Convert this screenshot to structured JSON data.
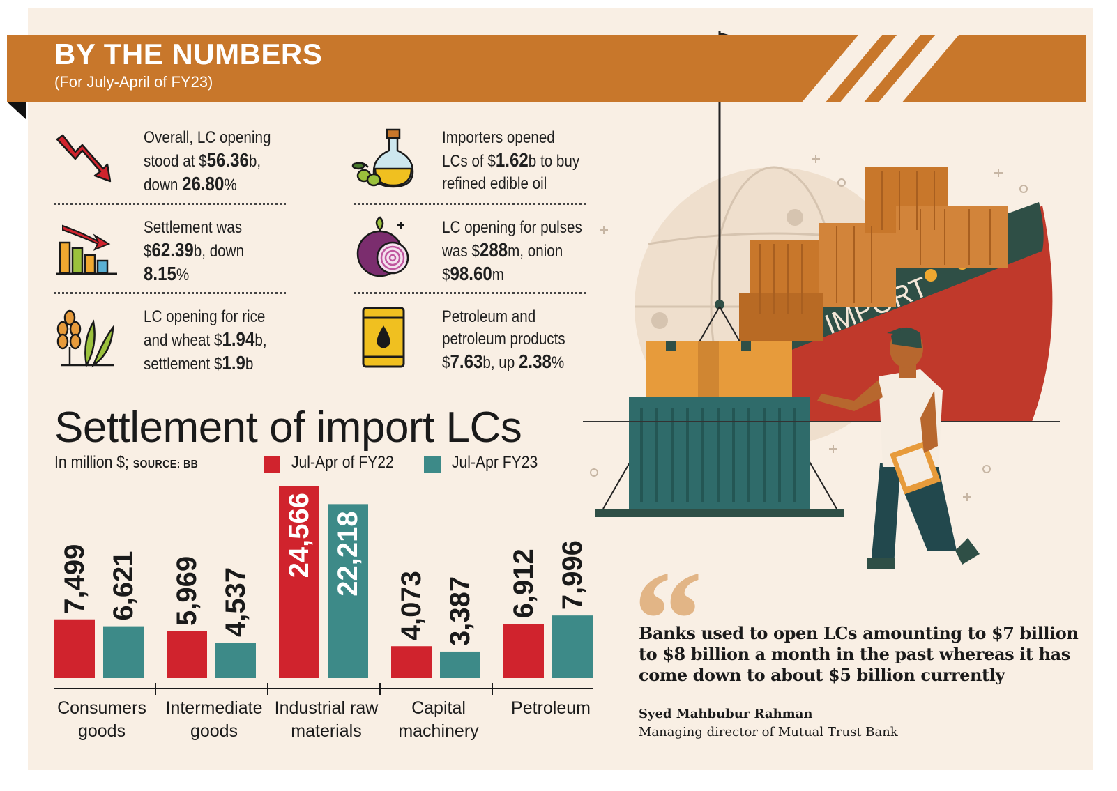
{
  "banner": {
    "title": "BY THE NUMBERS",
    "subtitle": "(For July-April of FY23)"
  },
  "stats": [
    {
      "icon": "trend-down-arrow-icon",
      "lines": [
        "Overall, LC opening",
        "stood at $<b>56.36</b>b,",
        "down <b>26.80</b>%"
      ]
    },
    {
      "icon": "declining-bar-chart-icon",
      "lines": [
        "Settlement was",
        "$<b>62.39</b>b, down",
        "<b>8.15</b>%"
      ]
    },
    {
      "icon": "wheat-rice-icon",
      "lines": [
        "LC opening for rice",
        "and wheat $<b>1.94</b>b,",
        "settlement $<b>1.9</b>b"
      ]
    },
    {
      "icon": "oil-bottle-olives-icon",
      "lines": [
        "Importers opened",
        "LCs of $<b>1.62</b>b to buy",
        "refined edible oil"
      ]
    },
    {
      "icon": "onion-icon",
      "lines": [
        "LC opening for pulses",
        "was $<b>288</b>m, onion",
        "$<b>98.60</b>m"
      ]
    },
    {
      "icon": "oil-barrel-icon",
      "lines": [
        "Petroleum and",
        "petroleum products",
        "$<b>7.63</b>b, up <b>2.38</b>%"
      ]
    }
  ],
  "colors": {
    "fy22": "#d0232d",
    "fy23": "#3d8a88",
    "banner": "#c8772b",
    "background": "#f9efe4"
  },
  "chart_data": {
    "type": "bar",
    "title": "Settlement of import LCs",
    "unit_label": "In million $;",
    "source_label": "SOURCE: BB",
    "categories": [
      [
        "Consumers",
        "goods"
      ],
      [
        "Intermediate",
        "goods"
      ],
      [
        "Industrial raw",
        "materials"
      ],
      [
        "Capital",
        "machinery"
      ],
      [
        "Petroleum"
      ]
    ],
    "series": [
      {
        "name": "Jul-Apr of FY22",
        "values": [
          7499,
          5969,
          24566,
          4073,
          6912
        ],
        "labels": [
          "7,499",
          "5,969",
          "24,566",
          "4,073",
          "6,912"
        ]
      },
      {
        "name": "Jul-Apr FY23",
        "values": [
          6621,
          4537,
          22218,
          3387,
          7996
        ],
        "labels": [
          "6,621",
          "4,537",
          "22,218",
          "3,387",
          "7,996"
        ]
      }
    ],
    "ylim": [
      0,
      24566
    ],
    "grid": false,
    "legend": "top"
  },
  "illustration": {
    "ship_label": "IMPORT"
  },
  "quote": {
    "mark": "“",
    "text": "Banks used to open LCs amounting to $7 billion to $8 billion a month in the past whereas it has come down to about $5 billion currently",
    "name": "Syed Mahbubur Rahman",
    "role": "Managing director of Mutual Trust Bank"
  }
}
